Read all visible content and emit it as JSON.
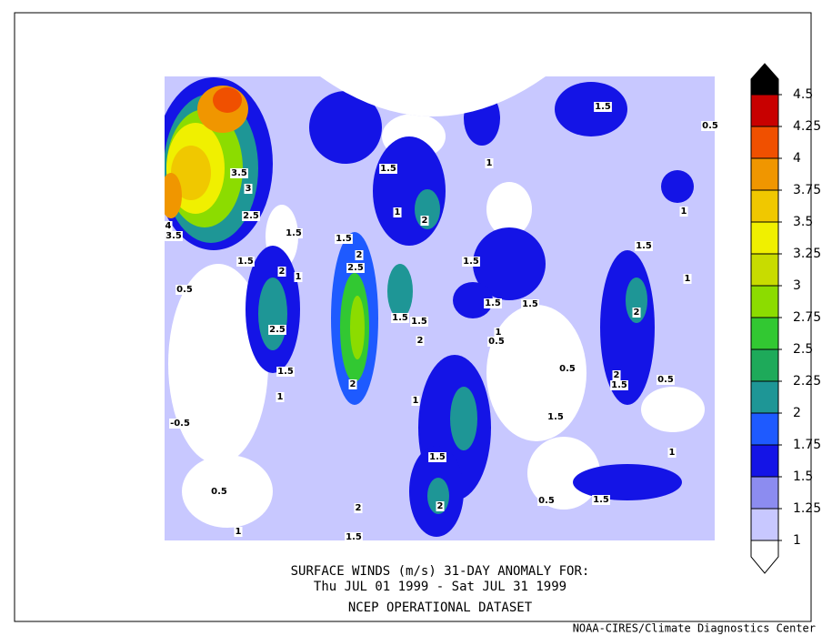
{
  "title_lines": [
    "SURFACE WINDS (m/s)   31-DAY ANOMALY FOR:",
    "Thu JUL 01 1999 - Sat JUL 31 1999",
    "NCEP OPERATIONAL DATASET"
  ],
  "credit": "NOAA-CIRES/Climate Diagnostics Center",
  "colorbar": {
    "levels": [
      1,
      1.25,
      1.5,
      1.75,
      2,
      2.25,
      2.5,
      2.75,
      3,
      3.25,
      3.5,
      3.75,
      4,
      4.25,
      4.5
    ],
    "colors": [
      "#ffffff",
      "#c8c8ff",
      "#8c8cf0",
      "#1414e6",
      "#1e5aff",
      "#1e9696",
      "#1eaa5a",
      "#32c832",
      "#8cdc00",
      "#c8dc00",
      "#f0f000",
      "#f0c800",
      "#f09600",
      "#f05000",
      "#c80000"
    ]
  },
  "contour_labels": [
    3.5,
    3,
    2.5,
    4,
    3.5,
    1.5,
    1.5,
    1.5,
    2,
    2.5,
    2,
    1,
    0.5,
    1.5,
    2,
    1,
    1,
    1.5,
    0.5,
    1,
    1.5,
    1,
    1.5,
    1.5,
    1.5,
    1.5,
    1.5,
    2.5,
    2,
    1,
    0.5,
    2,
    0.5,
    2,
    1.5,
    0.5,
    1.5,
    2,
    1,
    1,
    -0.5,
    1.5,
    1,
    1.5,
    0.5,
    2,
    2,
    1.5,
    0.5,
    1,
    1.5
  ]
}
